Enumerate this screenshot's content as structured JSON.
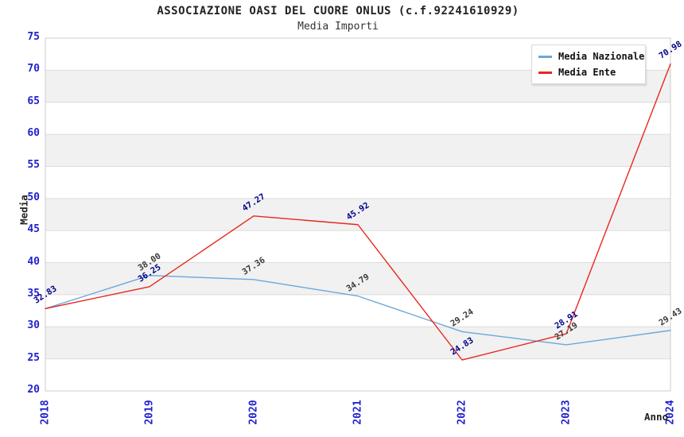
{
  "header": {
    "title": "ASSOCIAZIONE OASI DEL CUORE ONLUS (c.f.92241610929)",
    "subtitle": "Media Importi"
  },
  "colors": {
    "tick_label": "#2222cc",
    "band": "#f1f1f1",
    "grid_line": "#dcdcdc",
    "plot_border": "#cccccc",
    "background": "#ffffff"
  },
  "chart_data": {
    "type": "line",
    "title": "ASSOCIAZIONE OASI DEL CUORE ONLUS (c.f.92241610929)",
    "subtitle": "Media Importi",
    "xlabel": "Anno",
    "ylabel": "Media",
    "categories": [
      "2018",
      "2019",
      "2020",
      "2021",
      "2022",
      "2023",
      "2024"
    ],
    "ylim": [
      20,
      75
    ],
    "ytick_step": 5,
    "grid": "horizontal-bands",
    "legend_position": "top-right",
    "series": [
      {
        "name": "Media Nazionale",
        "color": "#69a8dc",
        "label_color": "#3a3a3a",
        "values": [
          32.83,
          38.0,
          37.36,
          34.79,
          29.24,
          27.19,
          29.43
        ],
        "labels": [
          "",
          "38.00",
          "37.36",
          "34.79",
          "29.24",
          "27.19",
          "29.43"
        ]
      },
      {
        "name": "Media Ente",
        "color": "#e8271e",
        "label_color": "#00008b",
        "values": [
          32.83,
          36.25,
          47.27,
          45.92,
          24.83,
          28.91,
          70.98
        ],
        "labels": [
          "32.83",
          "36.25",
          "47.27",
          "45.92",
          "24.83",
          "28.91",
          "70.98"
        ]
      }
    ]
  }
}
